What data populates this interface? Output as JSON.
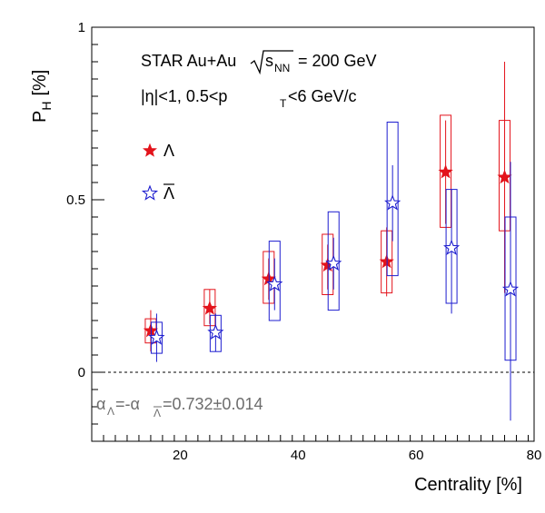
{
  "chart_data": {
    "type": "scatter",
    "xlabel": "Centrality [%]",
    "ylabel_main": "P",
    "ylabel_sub": "H",
    "ylabel_unit": "[%]",
    "xlim": [
      5,
      80
    ],
    "ylim": [
      -0.2,
      1.0
    ],
    "x_ticks": [
      20,
      40,
      60,
      80
    ],
    "x_tick_labels": [
      "20",
      "40",
      "60",
      "80"
    ],
    "y_ticks": [
      0,
      0.5,
      1
    ],
    "y_tick_labels": [
      "0",
      "0.5",
      "1"
    ],
    "x_minor_step": 2,
    "y_minor_step": 0.05,
    "zero_line": true,
    "annotations": {
      "line1_prefix": "STAR Au+Au",
      "line1_sqrt": "s",
      "line1_sub": "NN",
      "line1_suffix": "= 200 GeV",
      "line2_a": "|η|<1, 0.5<p",
      "line2_sub": "T",
      "line2_b": "<6 GeV/c",
      "alpha_a": "α",
      "alpha_sub1": "Λ",
      "alpha_b": "=-α",
      "alpha_sub2": "Λ",
      "alpha_c": "=0.732±0.014"
    },
    "legend": {
      "placement": "top-left",
      "entries": [
        "Λ",
        "Λ"
      ]
    },
    "series": [
      {
        "name": "Λ",
        "color": "#e3131b",
        "marker": "filled-star",
        "points": [
          {
            "x": 15,
            "y": 0.12,
            "stat_lo": 0.06,
            "stat_hi": 0.18,
            "sys_lo": 0.085,
            "sys_hi": 0.155
          },
          {
            "x": 25,
            "y": 0.185,
            "stat_lo": 0.14,
            "stat_hi": 0.24,
            "sys_lo": 0.135,
            "sys_hi": 0.24
          },
          {
            "x": 35,
            "y": 0.27,
            "stat_lo": 0.21,
            "stat_hi": 0.33,
            "sys_lo": 0.2,
            "sys_hi": 0.35
          },
          {
            "x": 45,
            "y": 0.31,
            "stat_lo": 0.24,
            "stat_hi": 0.37,
            "sys_lo": 0.225,
            "sys_hi": 0.4
          },
          {
            "x": 55,
            "y": 0.32,
            "stat_lo": 0.22,
            "stat_hi": 0.42,
            "sys_lo": 0.23,
            "sys_hi": 0.41
          },
          {
            "x": 65,
            "y": 0.58,
            "stat_lo": 0.43,
            "stat_hi": 0.73,
            "sys_lo": 0.42,
            "sys_hi": 0.745
          },
          {
            "x": 75,
            "y": 0.565,
            "stat_lo": 0.23,
            "stat_hi": 0.9,
            "sys_lo": 0.41,
            "sys_hi": 0.73
          }
        ]
      },
      {
        "name": "Λ̄",
        "color": "#1d1dcf",
        "marker": "open-star",
        "points": [
          {
            "x": 16,
            "y": 0.1,
            "stat_lo": 0.03,
            "stat_hi": 0.17,
            "sys_lo": 0.055,
            "sys_hi": 0.145
          },
          {
            "x": 26,
            "y": 0.115,
            "stat_lo": 0.06,
            "stat_hi": 0.17,
            "sys_lo": 0.06,
            "sys_hi": 0.165
          },
          {
            "x": 36,
            "y": 0.255,
            "stat_lo": 0.18,
            "stat_hi": 0.33,
            "sys_lo": 0.15,
            "sys_hi": 0.38
          },
          {
            "x": 46,
            "y": 0.315,
            "stat_lo": 0.24,
            "stat_hi": 0.39,
            "sys_lo": 0.18,
            "sys_hi": 0.465
          },
          {
            "x": 56,
            "y": 0.49,
            "stat_lo": 0.38,
            "stat_hi": 0.6,
            "sys_lo": 0.28,
            "sys_hi": 0.725
          },
          {
            "x": 66,
            "y": 0.36,
            "stat_lo": 0.17,
            "stat_hi": 0.53,
            "sys_lo": 0.2,
            "sys_hi": 0.53
          },
          {
            "x": 76,
            "y": 0.24,
            "stat_lo": -0.14,
            "stat_hi": 0.61,
            "sys_lo": 0.035,
            "sys_hi": 0.45
          }
        ]
      }
    ]
  }
}
